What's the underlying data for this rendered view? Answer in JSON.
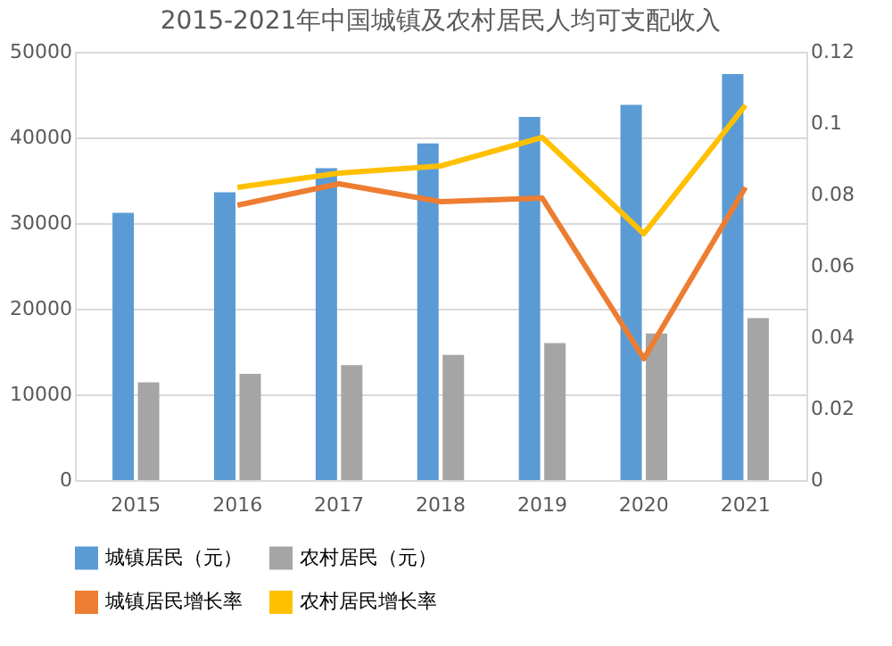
{
  "chart_data": {
    "type": "bar",
    "title": "2015-2021年中国城镇及农村居民人均可支配收入",
    "categories": [
      "2015",
      "2016",
      "2017",
      "2018",
      "2019",
      "2020",
      "2021"
    ],
    "series": [
      {
        "name": "城镇居民（元）",
        "color": "#5b9bd5",
        "values": [
          31200,
          33600,
          36400,
          39300,
          42400,
          43800,
          47400
        ]
      },
      {
        "name": "农村居民（元）",
        "color": "#a5a5a5",
        "values": [
          11400,
          12400,
          13400,
          14600,
          16000,
          17100,
          18900
        ]
      },
      {
        "name": "城镇居民增长率",
        "type": "line",
        "axis": "y2",
        "color": "#ed7d31",
        "values": [
          null,
          0.077,
          0.083,
          0.078,
          0.079,
          0.034,
          0.082
        ]
      },
      {
        "name": "农村居民增长率",
        "type": "line",
        "axis": "y2",
        "color": "#ffc000",
        "values": [
          null,
          0.082,
          0.086,
          0.088,
          0.096,
          0.069,
          0.105
        ]
      }
    ],
    "ylim": [
      0,
      50000
    ],
    "yticks": [
      0,
      10000,
      20000,
      30000,
      40000,
      50000
    ],
    "y2lim": [
      0,
      0.12
    ],
    "y2ticks": [
      0,
      0.02,
      0.04,
      0.06,
      0.08,
      0.1,
      0.12
    ],
    "grid": "y",
    "legend": "bottom"
  }
}
